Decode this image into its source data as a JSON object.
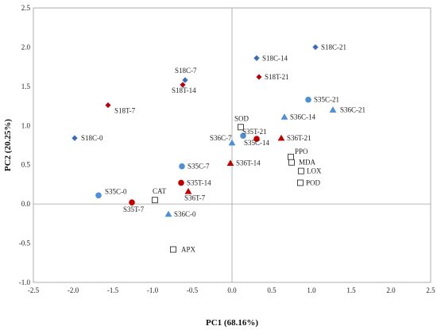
{
  "chart_data": {
    "type": "scatter",
    "xlabel": "PC1 (68.16%)",
    "ylabel": "PC2 (20.25%)",
    "xlim": [
      -2.5,
      2.5
    ],
    "ylim": [
      -1.0,
      2.5
    ],
    "xticks": [
      "-2.5",
      "-2.0",
      "-1.5",
      "-1.0",
      "-0.5",
      "0.0",
      "0.5",
      "1.0",
      "1.5",
      "2.0",
      "2.5"
    ],
    "yticks": [
      "-1.0",
      "-0.5",
      "0.0",
      "0.5",
      "1.0",
      "1.5",
      "2.0",
      "2.5"
    ],
    "x_tick_values": [
      -2.5,
      -2.0,
      -1.5,
      -1.0,
      -0.5,
      0.0,
      0.5,
      1.0,
      1.5,
      2.0,
      2.5
    ],
    "y_tick_values": [
      -1.0,
      -0.5,
      0.0,
      0.5,
      1.0,
      1.5,
      2.0,
      2.5
    ],
    "grid": false,
    "zero_lines": true,
    "colors": {
      "blue": "#4f8fd6",
      "red": "#c00000",
      "diamond_blue": "#3e6bb0"
    },
    "points": [
      {
        "label": "S18C-0",
        "x": -1.98,
        "y": 0.84,
        "shape": "diamond",
        "color": "blue"
      },
      {
        "label": "S18C-7",
        "x": -0.59,
        "y": 1.58,
        "shape": "diamond",
        "color": "blue"
      },
      {
        "label": "S18C-14",
        "x": 0.31,
        "y": 1.86,
        "shape": "diamond",
        "color": "blue"
      },
      {
        "label": "S18C-21",
        "x": 1.05,
        "y": 2.0,
        "shape": "diamond",
        "color": "blue"
      },
      {
        "label": "S18T-7",
        "x": -1.56,
        "y": 1.26,
        "shape": "diamond",
        "color": "red"
      },
      {
        "label": "S18T-14",
        "x": -0.62,
        "y": 1.52,
        "shape": "diamond",
        "color": "red"
      },
      {
        "label": "S18T-21",
        "x": 0.34,
        "y": 1.62,
        "shape": "diamond",
        "color": "red"
      },
      {
        "label": "S35C-0",
        "x": -1.68,
        "y": 0.11,
        "shape": "circle",
        "color": "blue"
      },
      {
        "label": "S35C-7",
        "x": -0.63,
        "y": 0.48,
        "shape": "circle",
        "color": "blue"
      },
      {
        "label": "S35C-14",
        "x": 0.14,
        "y": 0.87,
        "shape": "circle",
        "color": "blue"
      },
      {
        "label": "S35C-21",
        "x": 0.96,
        "y": 1.33,
        "shape": "circle",
        "color": "blue"
      },
      {
        "label": "S35T-7",
        "x": -1.26,
        "y": 0.02,
        "shape": "circle",
        "color": "red"
      },
      {
        "label": "S35T-14",
        "x": -0.64,
        "y": 0.27,
        "shape": "circle",
        "color": "red"
      },
      {
        "label": "S35T-21",
        "x": 0.31,
        "y": 0.83,
        "shape": "circle",
        "color": "red"
      },
      {
        "label": "S36C-0",
        "x": -0.8,
        "y": -0.13,
        "shape": "triangle",
        "color": "blue"
      },
      {
        "label": "S36C-7",
        "x": 0.0,
        "y": 0.78,
        "shape": "triangle",
        "color": "blue"
      },
      {
        "label": "S36C-14",
        "x": 0.66,
        "y": 1.11,
        "shape": "triangle",
        "color": "blue"
      },
      {
        "label": "S36C-21",
        "x": 1.27,
        "y": 1.2,
        "shape": "triangle",
        "color": "blue"
      },
      {
        "label": "S36T-7",
        "x": -0.55,
        "y": 0.16,
        "shape": "triangle",
        "color": "red"
      },
      {
        "label": "S36T-14",
        "x": -0.02,
        "y": 0.52,
        "shape": "triangle",
        "color": "red"
      },
      {
        "label": "S36T-21",
        "x": 0.62,
        "y": 0.84,
        "shape": "triangle",
        "color": "red"
      },
      {
        "label": "SOD",
        "x": 0.11,
        "y": 0.98,
        "shape": "square",
        "color": "none"
      },
      {
        "label": "PPO",
        "x": 0.74,
        "y": 0.6,
        "shape": "square",
        "color": "none"
      },
      {
        "label": "MDA",
        "x": 0.75,
        "y": 0.53,
        "shape": "square",
        "color": "none"
      },
      {
        "label": "LOX",
        "x": 0.87,
        "y": 0.42,
        "shape": "square",
        "color": "none"
      },
      {
        "label": "POD",
        "x": 0.86,
        "y": 0.27,
        "shape": "square",
        "color": "none"
      },
      {
        "label": "CAT",
        "x": -0.97,
        "y": 0.05,
        "shape": "square",
        "color": "none"
      },
      {
        "label": "APX",
        "x": -0.74,
        "y": -0.58,
        "shape": "square",
        "color": "none"
      }
    ]
  }
}
